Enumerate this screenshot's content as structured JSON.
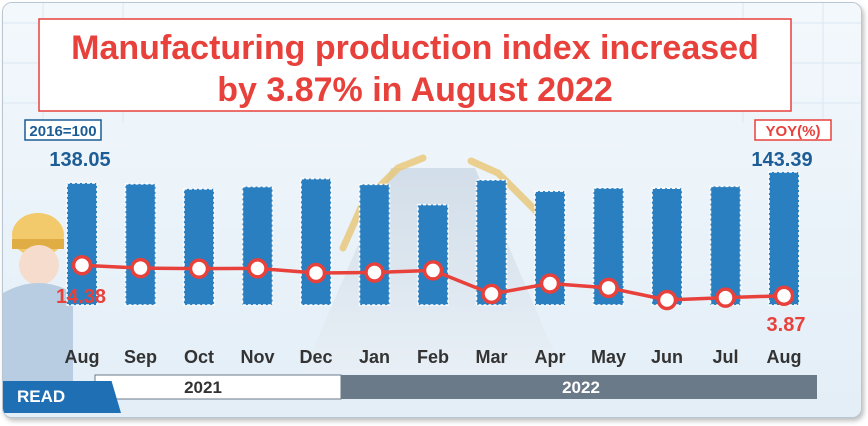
{
  "title": {
    "line1": "Manufacturing production index increased",
    "line2": "by 3.87% in August 2022"
  },
  "left_badge": "2016=100",
  "right_badge": "YOY(%)",
  "years": [
    "2021",
    "2022"
  ],
  "read_button": "READ",
  "colors": {
    "title": "#e8413c",
    "bar": "#2a7fc0",
    "bar_label": "#1c5d96",
    "line": "#e8413c",
    "line_label": "#e8413c",
    "year_2021_bg": "#ffffff",
    "year_2022_bg": "#6b7a88",
    "read_bg": "#1f6fb5"
  },
  "chart_data": {
    "type": "bar+line",
    "categories": [
      "Aug",
      "Sep",
      "Oct",
      "Nov",
      "Dec",
      "Jan",
      "Feb",
      "Mar",
      "Apr",
      "May",
      "Jun",
      "Jul",
      "Aug"
    ],
    "series": [
      {
        "name": "Manufacturing production index (2016=100)",
        "type": "bar",
        "values": [
          138.05,
          137.6,
          135.2,
          136.3,
          140.2,
          137.4,
          127.5,
          139.5,
          134.1,
          135.6,
          135.5,
          136.4,
          143.39
        ],
        "labels_shown": {
          "0": "138.05",
          "12": "143.39"
        }
      },
      {
        "name": "YOY(%)",
        "type": "line",
        "values": [
          14.38,
          13.4,
          13.2,
          13.3,
          11.7,
          11.9,
          12.6,
          4.5,
          8.1,
          6.6,
          2.4,
          3.2,
          3.87
        ],
        "labels_shown": {
          "0": "14.38",
          "12": "3.87"
        }
      }
    ],
    "x_groups": [
      {
        "label": "2021",
        "categories": [
          "Aug",
          "Sep",
          "Oct",
          "Nov",
          "Dec"
        ]
      },
      {
        "label": "2022",
        "categories": [
          "Jan",
          "Feb",
          "Mar",
          "Apr",
          "May",
          "Jun",
          "Jul",
          "Aug"
        ]
      }
    ]
  }
}
